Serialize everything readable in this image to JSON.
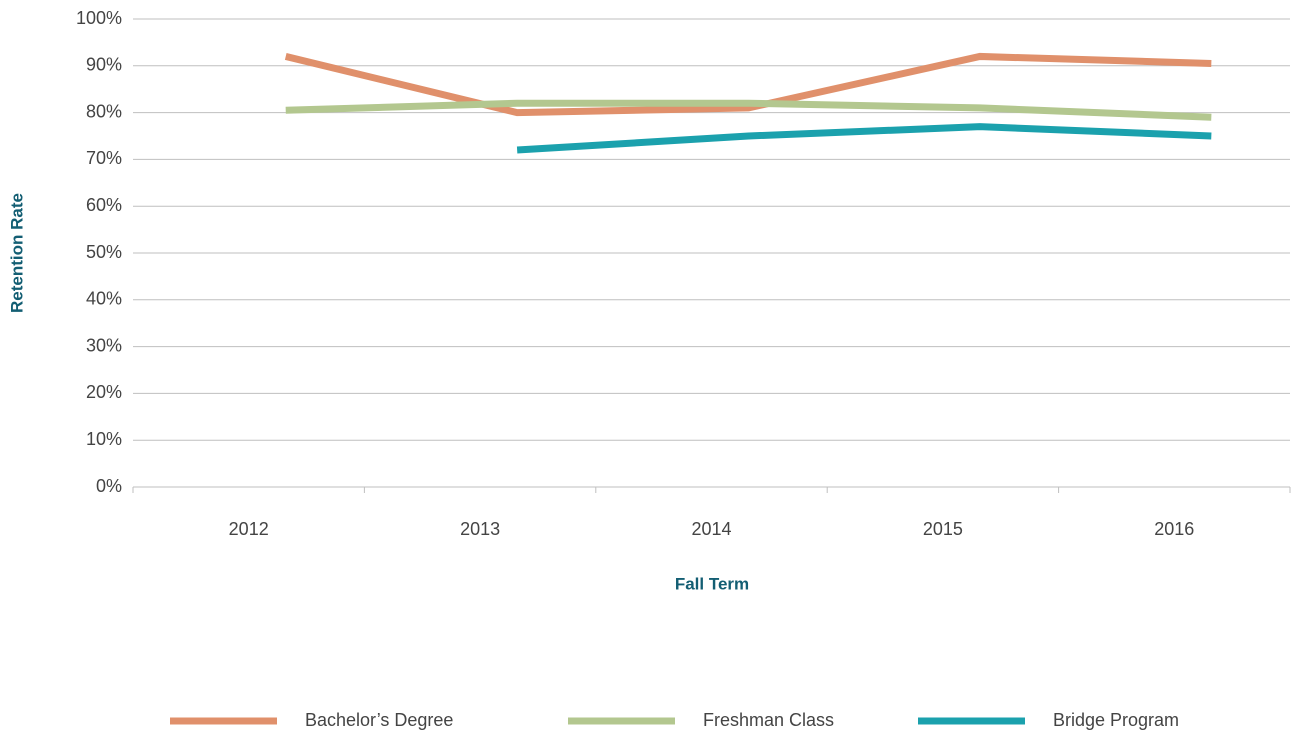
{
  "chart_data": {
    "type": "line",
    "categories": [
      "2012",
      "2013",
      "2014",
      "2015",
      "2016"
    ],
    "series": [
      {
        "name": "Bachelor’s Degree",
        "color": "#e0906b",
        "values": [
          92,
          80,
          81,
          92,
          90.5
        ]
      },
      {
        "name": "Freshman Class",
        "color": "#b3c78f",
        "values": [
          80.5,
          82,
          82,
          81,
          79
        ]
      },
      {
        "name": "Bridge Program",
        "color": "#1ba1ad",
        "values": [
          null,
          72,
          75,
          77,
          75
        ]
      }
    ],
    "ylim": [
      0,
      100
    ],
    "yticks": [
      {
        "value": 0,
        "label": "0%"
      },
      {
        "value": 10,
        "label": "10%"
      },
      {
        "value": 20,
        "label": "20%"
      },
      {
        "value": 30,
        "label": "30%"
      },
      {
        "value": 40,
        "label": "40%"
      },
      {
        "value": 50,
        "label": "50%"
      },
      {
        "value": 60,
        "label": "60%"
      },
      {
        "value": 70,
        "label": "70%"
      },
      {
        "value": 80,
        "label": "80%"
      },
      {
        "value": 90,
        "label": "90%"
      },
      {
        "value": 100,
        "label": "100%"
      }
    ],
    "ylabel": "Retention Rate",
    "xlabel": "Fall Term",
    "grid": true,
    "legend": "bottom"
  }
}
